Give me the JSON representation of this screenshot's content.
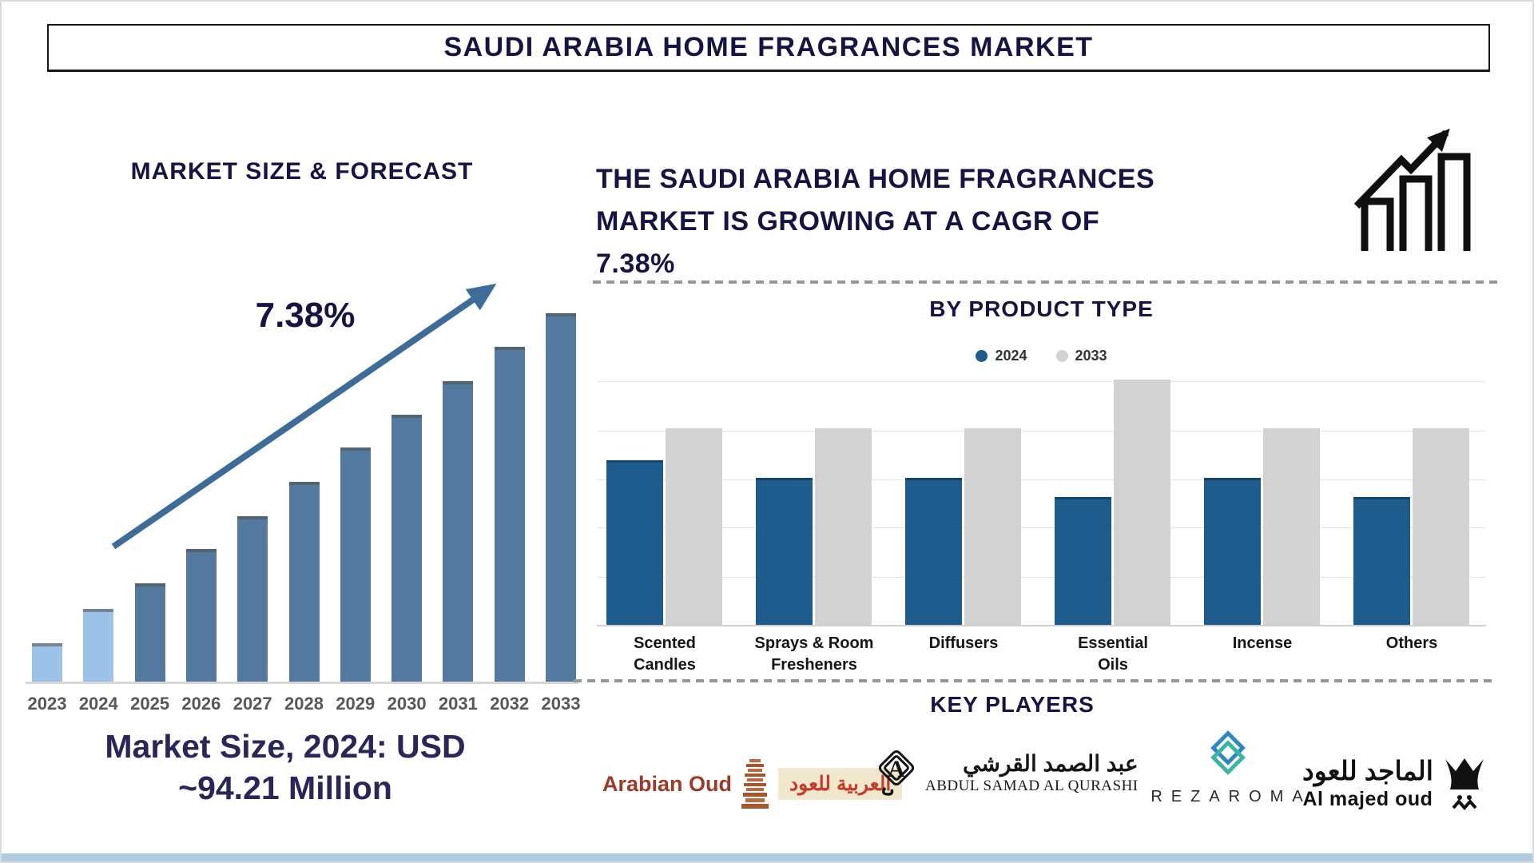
{
  "page": {
    "title": "SAUDI ARABIA HOME FRAGRANCES MARKET"
  },
  "left": {
    "cagr_label": "7.38%",
    "market_size_line1": "Market Size, 2024: USD",
    "market_size_line2": "~94.21 Million",
    "market_size_2024_usd_million": 94.21
  },
  "right": {
    "cagr_lines": [
      "THE SAUDI ARABIA HOME FRAGRANCES",
      "MARKET IS GROWING AT A CAGR OF",
      "7.38%"
    ],
    "cagr_percent": 7.38,
    "key_players_title": "KEY PLAYERS"
  },
  "key_players": [
    {
      "id": "arabian-oud",
      "name_latin": "Arabian Oud",
      "name_arabic": "العربية للعود"
    },
    {
      "id": "abdul-samad-al-qurashi",
      "name_arabic": "عبد الصمد القرشي",
      "name_latin": "ABDUL SAMAD AL QURASHI"
    },
    {
      "id": "rezaroma",
      "name": "REZAROMA"
    },
    {
      "id": "al-majed-oud",
      "name_arabic": "الماجد للعود",
      "name_latin": "Al majed oud"
    }
  ],
  "colors": {
    "navy_text": "#171443",
    "market_size_text": "#2b2658",
    "forecast_bar": "#53799e",
    "recent_bar": "#9cc2e8",
    "trend_arrow": "#3e6c99",
    "product_2024_bar": "#1d5c8c",
    "product_2033_bar": "#d2d2d2",
    "dashed_separator": "#8e9a9a",
    "bottom_strip": "#aecbe2",
    "arabian_oud_red": "#9c3a28",
    "rezaroma_teal": "#3cb3a8",
    "rezaroma_blue": "#2f86c2"
  },
  "chart_data": [
    {
      "type": "bar",
      "title": "MARKET SIZE & FORECAST",
      "categories": [
        "2023",
        "2024",
        "2025",
        "2026",
        "2027",
        "2028",
        "2029",
        "2030",
        "2031",
        "2032",
        "2033"
      ],
      "values": [
        10.6,
        19.9,
        26.8,
        36.1,
        45.0,
        54.3,
        63.6,
        72.5,
        81.6,
        90.9,
        100
      ],
      "units": "relative bar height, value axis not shown",
      "annotation": "7.38%",
      "caption": "Market Size, 2024: USD ~94.21 Million",
      "highlight_categories": [
        "2023",
        "2024"
      ],
      "color_highlight": "#9cc2e8",
      "color_default": "#53799e",
      "grid": false,
      "legend": "none"
    },
    {
      "type": "grouped_bar",
      "title": "BY PRODUCT TYPE",
      "categories": [
        "Scented Candles",
        "Sprays & Room Fresheners",
        "Diffusers",
        "Essential Oils",
        "Incense",
        "Others"
      ],
      "categories_lines": [
        [
          "Scented",
          "Candles"
        ],
        [
          "Sprays & Room",
          "Fresheners"
        ],
        [
          "Diffusers"
        ],
        [
          "Essential",
          "Oils"
        ],
        [
          "Incense"
        ],
        [
          "Others"
        ]
      ],
      "series": [
        {
          "name": "2024",
          "color": "#1d5c8c",
          "values": [
            67,
            60,
            60,
            52,
            60,
            52
          ]
        },
        {
          "name": "2033",
          "color": "#d2d2d2",
          "values": [
            80,
            80,
            80,
            100,
            80,
            80
          ]
        }
      ],
      "units": "relative bar height, value axis not shown",
      "ylim": [
        0,
        100
      ],
      "grid": true,
      "legend_position": "top-center"
    }
  ]
}
